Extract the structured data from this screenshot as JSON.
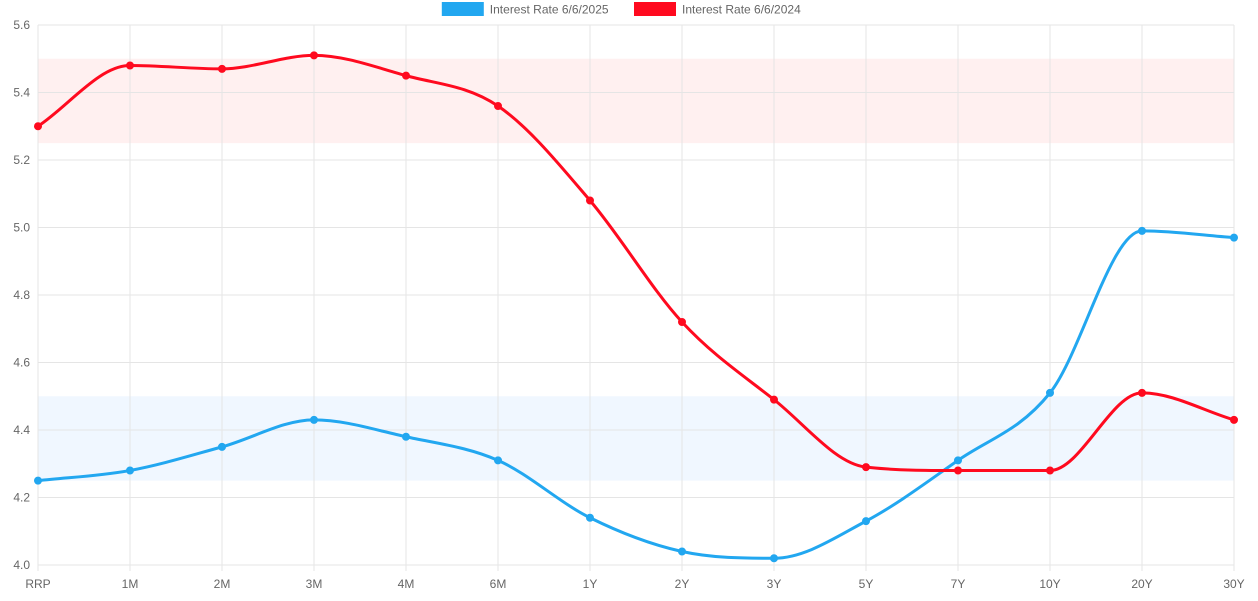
{
  "chart_data": {
    "type": "line",
    "categories": [
      "RRP",
      "1M",
      "2M",
      "3M",
      "4M",
      "6M",
      "1Y",
      "2Y",
      "3Y",
      "5Y",
      "7Y",
      "10Y",
      "20Y",
      "30Y"
    ],
    "series": [
      {
        "name": "Interest Rate 6/6/2025",
        "color": "#22a7f0",
        "values": [
          4.25,
          4.28,
          4.35,
          4.43,
          4.38,
          4.31,
          4.14,
          4.04,
          4.02,
          4.13,
          4.31,
          4.51,
          4.99,
          4.97
        ]
      },
      {
        "name": "Interest Rate 6/6/2024",
        "color": "#ff0a1f",
        "values": [
          5.3,
          5.48,
          5.47,
          5.51,
          5.45,
          5.36,
          5.08,
          4.72,
          4.49,
          4.29,
          4.28,
          4.28,
          4.51,
          4.43
        ]
      }
    ],
    "bands": [
      {
        "from": 5.25,
        "to": 5.5,
        "color": "#fff0f0"
      },
      {
        "from": 4.25,
        "to": 4.5,
        "color": "#f0f7ff"
      }
    ],
    "ylim": [
      4.0,
      5.6
    ],
    "yticks": [
      "4.0",
      "4.2",
      "4.4",
      "4.6",
      "4.8",
      "5.0",
      "5.2",
      "5.4",
      "5.6"
    ],
    "grid": true,
    "legend": "top-center"
  }
}
